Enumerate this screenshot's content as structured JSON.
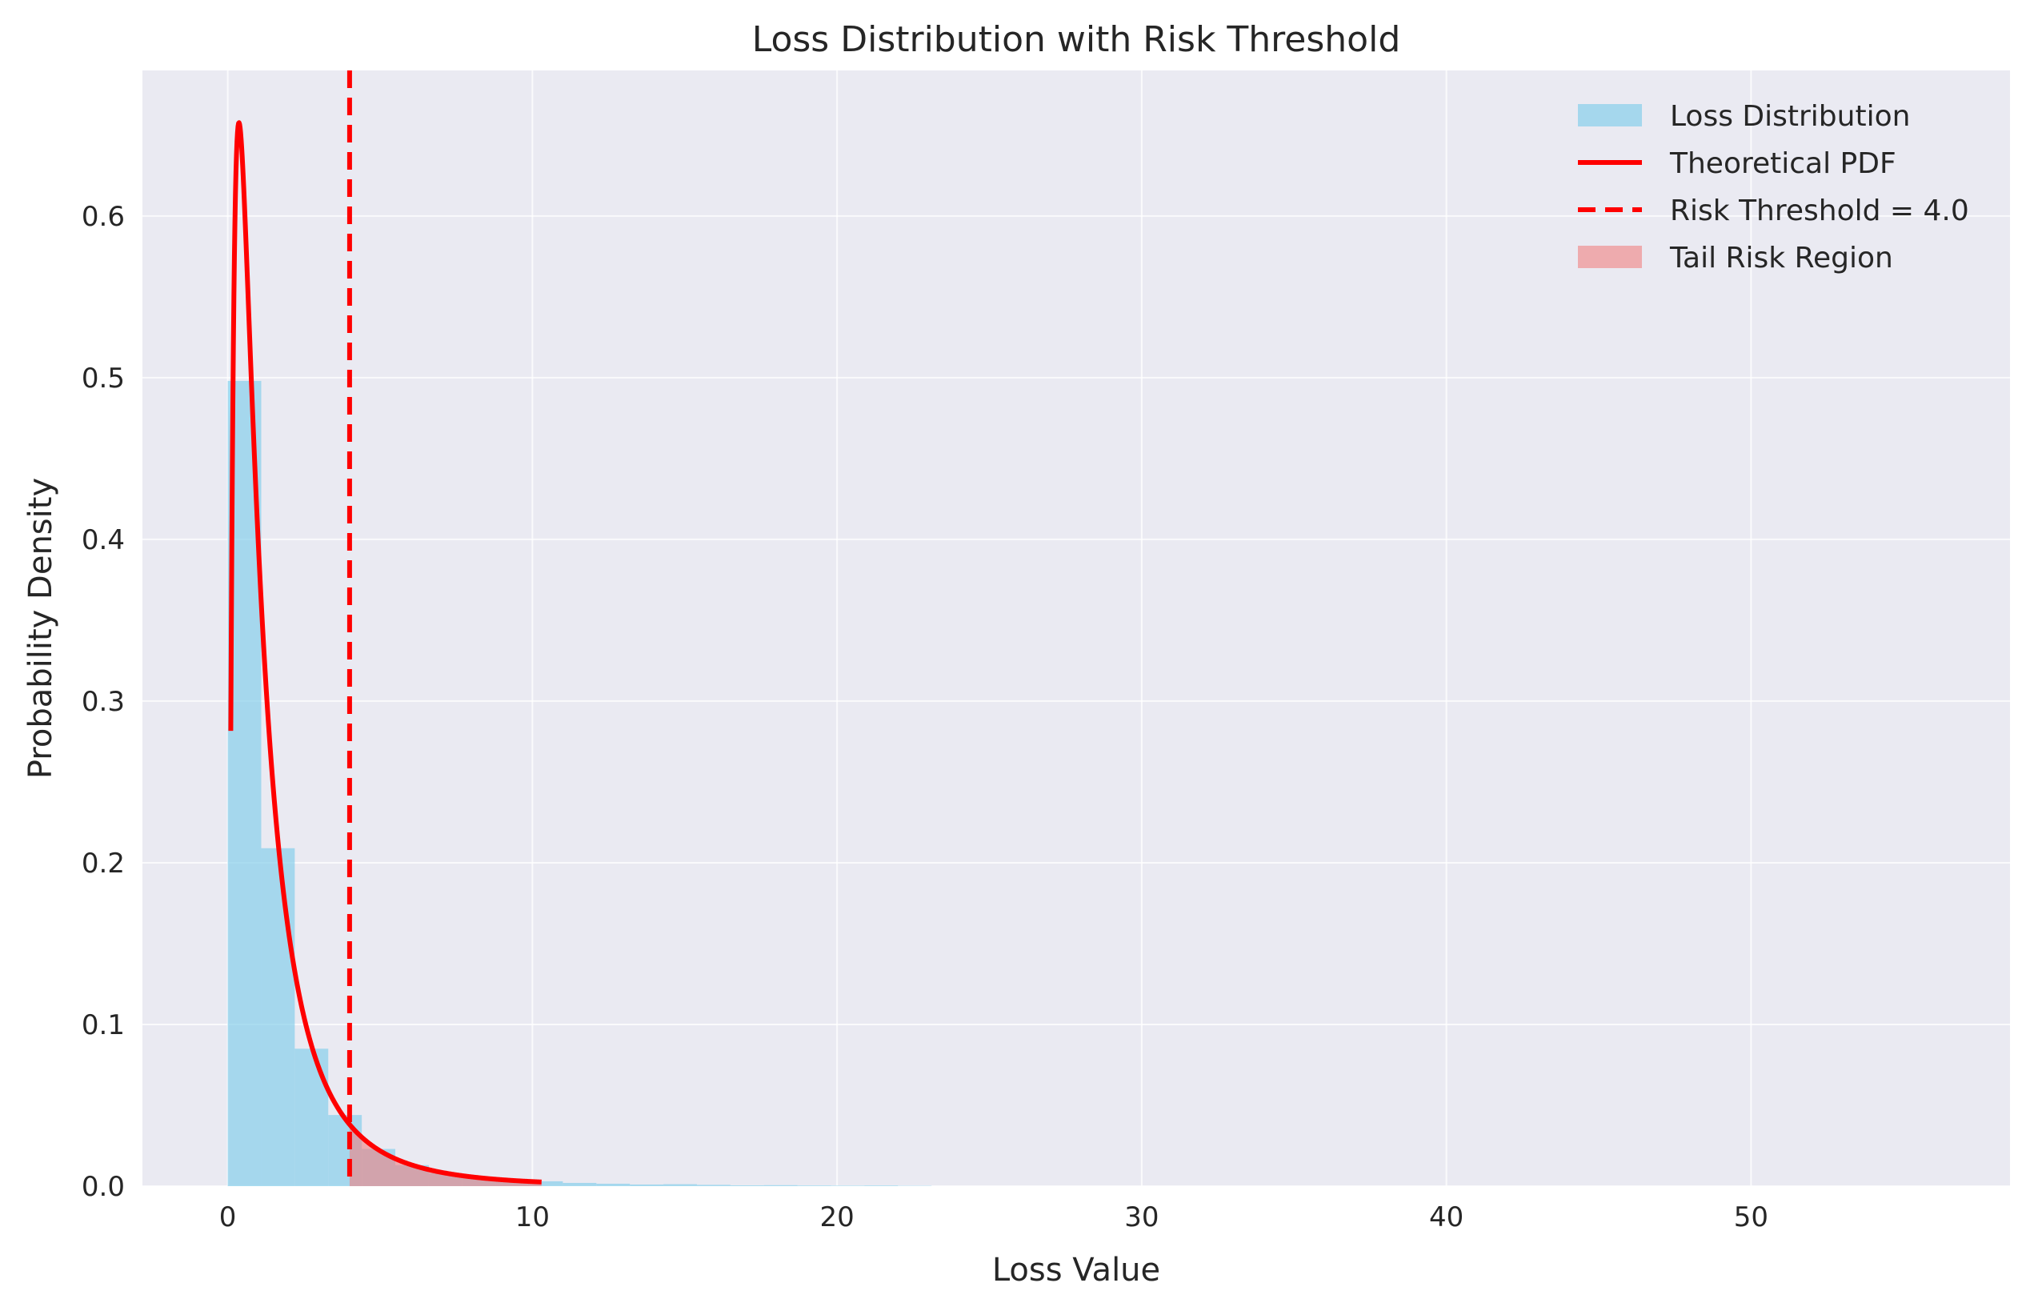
{
  "chart_data": {
    "type": "bar",
    "title": "Loss Distribution with Risk Threshold",
    "xlabel": "Loss Value",
    "ylabel": "Probability Density",
    "xlim": [
      -2.8,
      58.5
    ],
    "ylim": [
      0,
      0.69
    ],
    "xticks": [
      0,
      10,
      20,
      30,
      40,
      50
    ],
    "yticks": [
      0.0,
      0.1,
      0.2,
      0.3,
      0.4,
      0.5,
      0.6
    ],
    "grid": true,
    "legend_position": "top-right",
    "histogram": {
      "name": "Loss Distribution",
      "color": "#87CEEB",
      "bins": [
        {
          "x0": 0.0,
          "x1": 1.1,
          "density": 0.498
        },
        {
          "x0": 1.1,
          "x1": 2.2,
          "density": 0.209
        },
        {
          "x0": 2.2,
          "x1": 3.3,
          "density": 0.085
        },
        {
          "x0": 3.3,
          "x1": 4.4,
          "density": 0.044
        },
        {
          "x0": 4.4,
          "x1": 5.5,
          "density": 0.023
        },
        {
          "x0": 5.5,
          "x1": 6.6,
          "density": 0.013
        },
        {
          "x0": 6.6,
          "x1": 7.7,
          "density": 0.008
        },
        {
          "x0": 7.7,
          "x1": 8.8,
          "density": 0.005
        },
        {
          "x0": 8.8,
          "x1": 9.9,
          "density": 0.004
        },
        {
          "x0": 9.9,
          "x1": 11.0,
          "density": 0.003
        },
        {
          "x0": 11.0,
          "x1": 12.1,
          "density": 0.002
        },
        {
          "x0": 12.1,
          "x1": 13.2,
          "density": 0.0015
        },
        {
          "x0": 13.2,
          "x1": 14.3,
          "density": 0.001
        },
        {
          "x0": 14.3,
          "x1": 15.4,
          "density": 0.0012
        },
        {
          "x0": 15.4,
          "x1": 16.5,
          "density": 0.0008
        },
        {
          "x0": 16.5,
          "x1": 17.6,
          "density": 0.0005
        },
        {
          "x0": 17.6,
          "x1": 18.7,
          "density": 0.0006
        },
        {
          "x0": 18.7,
          "x1": 19.8,
          "density": 0.0004
        },
        {
          "x0": 19.8,
          "x1": 20.9,
          "density": 0.0003
        },
        {
          "x0": 20.9,
          "x1": 22.0,
          "density": 0.0004
        },
        {
          "x0": 22.0,
          "x1": 23.1,
          "density": 0.0002
        }
      ]
    },
    "pdf": {
      "name": "Theoretical PDF",
      "color": "#FF0000",
      "distribution": "lognormal",
      "mu": 0.0,
      "sigma": 1.0,
      "x_range": [
        0.1,
        10.3
      ]
    },
    "threshold": {
      "name": "Risk Threshold = 4.0",
      "value": 4.0,
      "color": "#FF0000"
    },
    "tail_region": {
      "name": "Tail Risk Region",
      "from": 4.0,
      "to": 10.3,
      "color": "#F08080"
    },
    "legend": [
      {
        "label": "Loss Distribution",
        "kind": "patch",
        "color": "#87CEEB"
      },
      {
        "label": "Theoretical PDF",
        "kind": "line",
        "color": "#FF0000"
      },
      {
        "label": "Risk Threshold = 4.0",
        "kind": "dashed",
        "color": "#FF0000"
      },
      {
        "label": "Tail Risk Region",
        "kind": "patch",
        "color": "#F08080"
      }
    ]
  }
}
